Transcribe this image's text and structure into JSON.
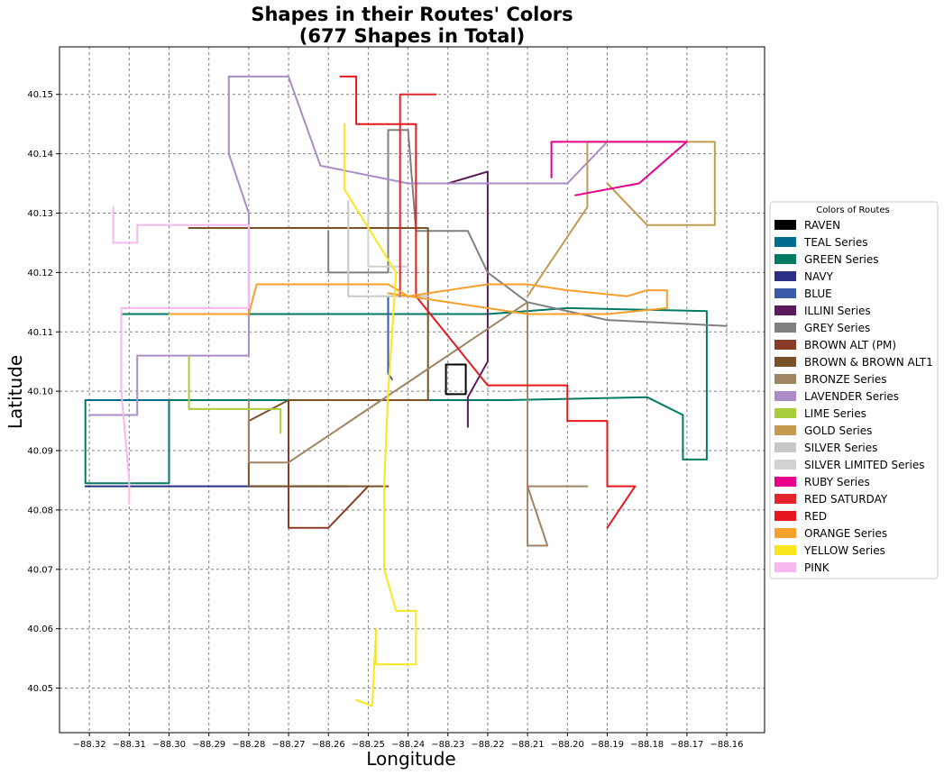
{
  "chart_data": {
    "type": "line",
    "title_line1": "Shapes in their Routes' Colors",
    "title_line2": "(677 Shapes in Total)",
    "xlabel": "Longitude",
    "ylabel": "Latitude",
    "xlim": [
      -88.3275,
      -88.1505
    ],
    "ylim": [
      40.0425,
      40.158
    ],
    "x_ticks": [
      -88.32,
      -88.31,
      -88.3,
      -88.29,
      -88.28,
      -88.27,
      -88.26,
      -88.25,
      -88.24,
      -88.23,
      -88.22,
      -88.21,
      -88.2,
      -88.19,
      -88.18,
      -88.17,
      -88.16
    ],
    "x_tick_labels": [
      "−88.32",
      "−88.31",
      "−88.30",
      "−88.29",
      "−88.28",
      "−88.27",
      "−88.26",
      "−88.25",
      "−88.24",
      "−88.23",
      "−88.22",
      "−88.21",
      "−88.20",
      "−88.19",
      "−88.18",
      "−88.17",
      "−88.16"
    ],
    "y_ticks": [
      40.05,
      40.06,
      40.07,
      40.08,
      40.09,
      40.1,
      40.11,
      40.12,
      40.13,
      40.14,
      40.15
    ],
    "y_tick_labels": [
      "40.05",
      "40.06",
      "40.07",
      "40.08",
      "40.09",
      "40.10",
      "40.11",
      "40.12",
      "40.13",
      "40.14",
      "40.15"
    ],
    "grid": true,
    "legend_position": "right",
    "legend_title": "Colors of Routes",
    "series": [
      {
        "name": "RAVEN",
        "color": "#000000",
        "points": [
          [
            -88.2255,
            40.1045
          ],
          [
            -88.2255,
            40.0995
          ],
          [
            -88.2305,
            40.0995
          ],
          [
            -88.2305,
            40.1045
          ],
          [
            -88.2255,
            40.1045
          ]
        ]
      },
      {
        "name": "TEAL Series",
        "color": "#006d8f",
        "points": [
          [
            -88.321,
            40.0985
          ],
          [
            -88.3,
            40.0985
          ],
          [
            -88.3,
            40.098
          ]
        ]
      },
      {
        "name": "GREEN Series",
        "color": "#007a63",
        "points": [
          [
            -88.312,
            40.113
          ],
          [
            -88.268,
            40.113
          ],
          [
            -88.245,
            40.113
          ],
          [
            -88.22,
            40.113
          ],
          [
            -88.2,
            40.114
          ],
          [
            -88.165,
            40.1135
          ],
          [
            -88.165,
            40.0885
          ],
          [
            -88.171,
            40.0885
          ],
          [
            -88.171,
            40.096
          ],
          [
            -88.18,
            40.099
          ],
          [
            -88.215,
            40.0985
          ],
          [
            -88.27,
            40.0985
          ],
          [
            -88.3,
            40.0985
          ],
          [
            -88.3,
            40.0845
          ],
          [
            -88.321,
            40.0845
          ],
          [
            -88.321,
            40.0985
          ]
        ]
      },
      {
        "name": "NAVY",
        "color": "#2b2f83",
        "points": [
          [
            -88.321,
            40.084
          ],
          [
            -88.27,
            40.084
          ],
          [
            -88.255,
            40.084
          ]
        ]
      },
      {
        "name": "BLUE",
        "color": "#3b5ba9",
        "points": [
          [
            -88.245,
            40.116
          ],
          [
            -88.245,
            40.103
          ],
          [
            -88.244,
            40.102
          ]
        ]
      },
      {
        "name": "ILLINI Series",
        "color": "#5a1a5c",
        "points": [
          [
            -88.23,
            40.135
          ],
          [
            -88.22,
            40.137
          ],
          [
            -88.22,
            40.123
          ],
          [
            -88.22,
            40.105
          ],
          [
            -88.225,
            40.099
          ],
          [
            -88.225,
            40.094
          ]
        ]
      },
      {
        "name": "GREY Series",
        "color": "#808080",
        "points": [
          [
            -88.26,
            40.127
          ],
          [
            -88.26,
            40.12
          ],
          [
            -88.25,
            40.12
          ],
          [
            -88.245,
            40.12
          ],
          [
            -88.245,
            40.144
          ],
          [
            -88.24,
            40.144
          ],
          [
            -88.238,
            40.127
          ],
          [
            -88.225,
            40.127
          ],
          [
            -88.22,
            40.12
          ],
          [
            -88.21,
            40.115
          ],
          [
            -88.19,
            40.112
          ],
          [
            -88.16,
            40.111
          ]
        ]
      },
      {
        "name": "BROWN ALT (PM)",
        "color": "#8a3b25",
        "points": [
          [
            -88.27,
            40.0985
          ],
          [
            -88.27,
            40.077
          ],
          [
            -88.26,
            40.077
          ],
          [
            -88.25,
            40.084
          ]
        ]
      },
      {
        "name": "BROWN & BROWN ALT1",
        "color": "#7b5128",
        "points": [
          [
            -88.295,
            40.1275
          ],
          [
            -88.235,
            40.1275
          ],
          [
            -88.235,
            40.0985
          ],
          [
            -88.27,
            40.0985
          ],
          [
            -88.28,
            40.095
          ],
          [
            -88.28,
            40.084
          ],
          [
            -88.245,
            40.084
          ]
        ]
      },
      {
        "name": "BRONZE Series",
        "color": "#a08563",
        "points": [
          [
            -88.28,
            40.0985
          ],
          [
            -88.28,
            40.088
          ],
          [
            -88.27,
            40.088
          ],
          [
            -88.21,
            40.115
          ],
          [
            -88.21,
            40.074
          ],
          [
            -88.205,
            40.074
          ],
          [
            -88.21,
            40.084
          ],
          [
            -88.195,
            40.084
          ]
        ]
      },
      {
        "name": "LAVENDER Series",
        "color": "#ab8cc6",
        "points": [
          [
            -88.32,
            40.096
          ],
          [
            -88.308,
            40.096
          ],
          [
            -88.308,
            40.106
          ],
          [
            -88.28,
            40.106
          ],
          [
            -88.28,
            40.13
          ],
          [
            -88.285,
            40.14
          ],
          [
            -88.285,
            40.153
          ],
          [
            -88.27,
            40.153
          ],
          [
            -88.262,
            40.138
          ],
          [
            -88.24,
            40.135
          ],
          [
            -88.2,
            40.135
          ],
          [
            -88.19,
            40.142
          ]
        ]
      },
      {
        "name": "LIME Series",
        "color": "#a9cd38",
        "points": [
          [
            -88.295,
            40.106
          ],
          [
            -88.295,
            40.097
          ],
          [
            -88.272,
            40.097
          ],
          [
            -88.272,
            40.093
          ]
        ]
      },
      {
        "name": "GOLD Series",
        "color": "#c49a50",
        "points": [
          [
            -88.21,
            40.116
          ],
          [
            -88.195,
            40.131
          ],
          [
            -88.195,
            40.142
          ],
          [
            -88.163,
            40.142
          ],
          [
            -88.163,
            40.128
          ],
          [
            -88.18,
            40.128
          ],
          [
            -88.19,
            40.135
          ]
        ]
      },
      {
        "name": "SILVER Series",
        "color": "#c8c8c8",
        "points": [
          [
            -88.255,
            40.132
          ],
          [
            -88.255,
            40.116
          ],
          [
            -88.235,
            40.116
          ]
        ]
      },
      {
        "name": "SILVER LIMITED Series",
        "color": "#d2d2d2",
        "points": [
          [
            -88.25,
            40.13
          ],
          [
            -88.25,
            40.121
          ],
          [
            -88.24,
            40.121
          ]
        ]
      },
      {
        "name": "RUBY Series",
        "color": "#e6008a",
        "points": [
          [
            -88.204,
            40.136
          ],
          [
            -88.204,
            40.142
          ],
          [
            -88.17,
            40.142
          ],
          [
            -88.182,
            40.135
          ],
          [
            -88.198,
            40.133
          ]
        ]
      },
      {
        "name": "RED SATURDAY",
        "color": "#e3242b",
        "points": [
          [
            -88.242,
            40.133
          ],
          [
            -88.242,
            40.116
          ],
          [
            -88.242,
            40.15
          ],
          [
            -88.233,
            40.15
          ]
        ]
      },
      {
        "name": "RED",
        "color": "#e8171e",
        "points": [
          [
            -88.257,
            40.153
          ],
          [
            -88.253,
            40.153
          ],
          [
            -88.253,
            40.145
          ],
          [
            -88.238,
            40.145
          ],
          [
            -88.238,
            40.116
          ],
          [
            -88.22,
            40.101
          ],
          [
            -88.2,
            40.101
          ],
          [
            -88.2,
            40.095
          ],
          [
            -88.19,
            40.095
          ],
          [
            -88.19,
            40.084
          ],
          [
            -88.183,
            40.084
          ],
          [
            -88.19,
            40.077
          ]
        ]
      },
      {
        "name": "ORANGE Series",
        "color": "#f5a02b",
        "points": [
          [
            -88.3,
            40.113
          ],
          [
            -88.28,
            40.113
          ],
          [
            -88.278,
            40.118
          ],
          [
            -88.245,
            40.118
          ],
          [
            -88.24,
            40.116
          ],
          [
            -88.22,
            40.118
          ],
          [
            -88.21,
            40.118
          ],
          [
            -88.2,
            40.117
          ],
          [
            -88.185,
            40.116
          ],
          [
            -88.18,
            40.117
          ],
          [
            -88.175,
            40.117
          ],
          [
            -88.175,
            40.114
          ],
          [
            -88.19,
            40.113
          ],
          [
            -88.21,
            40.113
          ],
          [
            -88.245,
            40.1165
          ]
        ]
      },
      {
        "name": "YELLOW Series",
        "color": "#f8e71c",
        "points": [
          [
            -88.256,
            40.145
          ],
          [
            -88.256,
            40.134
          ],
          [
            -88.243,
            40.12
          ],
          [
            -88.245,
            40.1
          ],
          [
            -88.246,
            40.084
          ],
          [
            -88.246,
            40.07
          ],
          [
            -88.243,
            40.063
          ],
          [
            -88.238,
            40.063
          ],
          [
            -88.238,
            40.054
          ],
          [
            -88.248,
            40.054
          ],
          [
            -88.248,
            40.06
          ],
          [
            -88.249,
            40.047
          ],
          [
            -88.253,
            40.048
          ]
        ]
      },
      {
        "name": "PINK",
        "color": "#f8b8ee",
        "points": [
          [
            -88.314,
            40.131
          ],
          [
            -88.314,
            40.125
          ],
          [
            -88.308,
            40.125
          ],
          [
            -88.308,
            40.128
          ],
          [
            -88.28,
            40.128
          ],
          [
            -88.28,
            40.114
          ],
          [
            -88.312,
            40.114
          ],
          [
            -88.312,
            40.1
          ],
          [
            -88.31,
            40.085
          ],
          [
            -88.31,
            40.081
          ]
        ]
      }
    ]
  }
}
